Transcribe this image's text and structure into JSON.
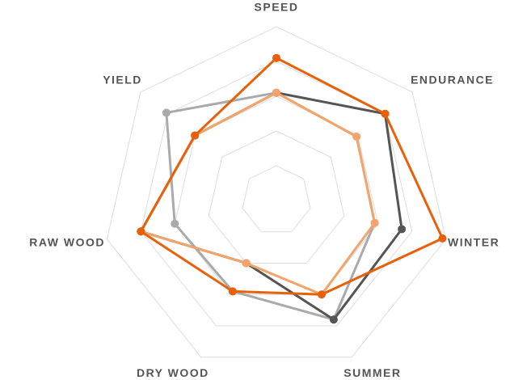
{
  "chart_data": {
    "type": "radar",
    "categories": [
      "SPEED",
      "ENDURANCE",
      "WINTER",
      "SUMMER",
      "DRY WOOD",
      "RAW WOOD",
      "YIELD"
    ],
    "series": [
      {
        "color": "#aaaaaa",
        "values": [
          3.1,
          2.95,
          2.9,
          3.8,
          2.9,
          3.0,
          4.05
        ]
      },
      {
        "color": "#555555",
        "values": [
          3.1,
          4.0,
          3.7,
          3.8,
          2.0,
          4.0,
          3.0
        ]
      },
      {
        "color": "#f4a46a",
        "values": [
          3.1,
          2.95,
          2.9,
          3.0,
          2.0,
          4.0,
          3.0
        ]
      },
      {
        "color": "#e8600a",
        "values": [
          4.1,
          4.0,
          4.9,
          3.0,
          2.9,
          4.0,
          3.0
        ]
      }
    ],
    "ylim": [
      0,
      5
    ],
    "yticks": [
      1,
      2,
      3,
      4,
      5
    ],
    "grid": true
  }
}
